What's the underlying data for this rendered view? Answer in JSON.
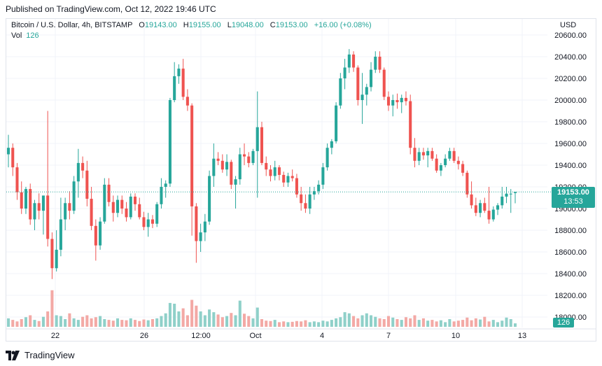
{
  "published": "Published on TradingView.com, Oct 12, 2022 19:46 UTC",
  "legend": {
    "symbol": "Bitcoin / U.S. Dollar, 4h, BITSTAMP",
    "o_label": "O",
    "o": "19143.00",
    "h_label": "H",
    "h": "19155.00",
    "l_label": "L",
    "l": "19048.00",
    "c_label": "C",
    "c": "19153.00",
    "change": "+16.00 (+0.08%)"
  },
  "vol_legend": {
    "label": "Vol",
    "value": "126"
  },
  "currency": "USD",
  "last_price": {
    "price": "19153.00",
    "countdown": "13:53"
  },
  "vol_badge": "126",
  "brand": "TradingView",
  "colors": {
    "up": "#26a69a",
    "down": "#ef5350",
    "up_vol": "#8fd0c9",
    "down_vol": "#f3a9a5",
    "grid": "#f0f3fa"
  },
  "chart_data": {
    "type": "candlestick",
    "y_axis": {
      "ticks": [
        "20600.00",
        "20400.00",
        "20200.00",
        "20000.00",
        "19800.00",
        "19600.00",
        "19400.00",
        "19200.00",
        "19000.00",
        "18800.00",
        "18600.00",
        "18400.00",
        "18200.00",
        "18000.00"
      ],
      "ylim": [
        18000,
        20650
      ]
    },
    "x_axis": {
      "ticks": [
        "22",
        "26",
        "12:00",
        "Oct",
        "4",
        "7",
        "10",
        "13"
      ]
    },
    "candles": [
      {
        "o": 19500,
        "h": 19680,
        "l": 19380,
        "c": 19560
      },
      {
        "o": 19560,
        "h": 19600,
        "l": 19300,
        "c": 19380
      },
      {
        "o": 19380,
        "h": 19420,
        "l": 19080,
        "c": 19150
      },
      {
        "o": 19150,
        "h": 19250,
        "l": 18950,
        "c": 19000
      },
      {
        "o": 19000,
        "h": 19200,
        "l": 18950,
        "c": 19180
      },
      {
        "o": 19180,
        "h": 19230,
        "l": 18850,
        "c": 18900
      },
      {
        "o": 18900,
        "h": 19080,
        "l": 18800,
        "c": 19050
      },
      {
        "o": 19050,
        "h": 19140,
        "l": 18900,
        "c": 18980
      },
      {
        "o": 18980,
        "h": 19100,
        "l": 18760,
        "c": 19120
      },
      {
        "o": 19120,
        "h": 19900,
        "l": 18650,
        "c": 18720
      },
      {
        "o": 18720,
        "h": 18780,
        "l": 18350,
        "c": 18450
      },
      {
        "o": 18450,
        "h": 18800,
        "l": 18420,
        "c": 18620
      },
      {
        "o": 18620,
        "h": 19100,
        "l": 18560,
        "c": 18900
      },
      {
        "o": 18900,
        "h": 19100,
        "l": 18800,
        "c": 19050
      },
      {
        "o": 19050,
        "h": 19160,
        "l": 18900,
        "c": 18980
      },
      {
        "o": 18980,
        "h": 19300,
        "l": 18950,
        "c": 19250
      },
      {
        "o": 19250,
        "h": 19550,
        "l": 19100,
        "c": 19420
      },
      {
        "o": 19420,
        "h": 19480,
        "l": 19280,
        "c": 19350
      },
      {
        "o": 19350,
        "h": 19440,
        "l": 19020,
        "c": 19090
      },
      {
        "o": 19090,
        "h": 19200,
        "l": 18800,
        "c": 18840
      },
      {
        "o": 18840,
        "h": 18900,
        "l": 18520,
        "c": 18660
      },
      {
        "o": 18660,
        "h": 18920,
        "l": 18620,
        "c": 18880
      },
      {
        "o": 18880,
        "h": 19280,
        "l": 18860,
        "c": 19220
      },
      {
        "o": 19220,
        "h": 19280,
        "l": 19020,
        "c": 19060
      },
      {
        "o": 19060,
        "h": 19120,
        "l": 18880,
        "c": 18960
      },
      {
        "o": 18960,
        "h": 19120,
        "l": 18920,
        "c": 19080
      },
      {
        "o": 19080,
        "h": 19120,
        "l": 18950,
        "c": 19000
      },
      {
        "o": 19000,
        "h": 19060,
        "l": 18880,
        "c": 18920
      },
      {
        "o": 18920,
        "h": 19140,
        "l": 18900,
        "c": 19110
      },
      {
        "o": 19110,
        "h": 19140,
        "l": 18980,
        "c": 19040
      },
      {
        "o": 19040,
        "h": 19100,
        "l": 18900,
        "c": 18920
      },
      {
        "o": 18920,
        "h": 18970,
        "l": 18800,
        "c": 18830
      },
      {
        "o": 18830,
        "h": 18960,
        "l": 18740,
        "c": 18900
      },
      {
        "o": 18900,
        "h": 18940,
        "l": 18820,
        "c": 18860
      },
      {
        "o": 18860,
        "h": 19060,
        "l": 18830,
        "c": 19040
      },
      {
        "o": 19040,
        "h": 19280,
        "l": 19000,
        "c": 19200
      },
      {
        "o": 19200,
        "h": 19260,
        "l": 19100,
        "c": 19230
      },
      {
        "o": 19230,
        "h": 20020,
        "l": 19200,
        "c": 20000
      },
      {
        "o": 20000,
        "h": 20350,
        "l": 19980,
        "c": 20220
      },
      {
        "o": 20220,
        "h": 20330,
        "l": 20150,
        "c": 20290
      },
      {
        "o": 20290,
        "h": 20380,
        "l": 20000,
        "c": 20030
      },
      {
        "o": 20030,
        "h": 20100,
        "l": 19900,
        "c": 19950
      },
      {
        "o": 19950,
        "h": 19970,
        "l": 18750,
        "c": 19020
      },
      {
        "o": 19020,
        "h": 19050,
        "l": 18500,
        "c": 18700
      },
      {
        "o": 18700,
        "h": 18860,
        "l": 18600,
        "c": 18780
      },
      {
        "o": 18780,
        "h": 18950,
        "l": 18700,
        "c": 18880
      },
      {
        "o": 18880,
        "h": 19350,
        "l": 18850,
        "c": 19300
      },
      {
        "o": 19300,
        "h": 19600,
        "l": 19200,
        "c": 19460
      },
      {
        "o": 19460,
        "h": 19520,
        "l": 19400,
        "c": 19440
      },
      {
        "o": 19440,
        "h": 19500,
        "l": 19330,
        "c": 19360
      },
      {
        "o": 19360,
        "h": 19500,
        "l": 19300,
        "c": 19430
      },
      {
        "o": 19430,
        "h": 19450,
        "l": 19180,
        "c": 19220
      },
      {
        "o": 19220,
        "h": 19300,
        "l": 19000,
        "c": 19270
      },
      {
        "o": 19270,
        "h": 19560,
        "l": 19220,
        "c": 19500
      },
      {
        "o": 19500,
        "h": 19600,
        "l": 19400,
        "c": 19480
      },
      {
        "o": 19480,
        "h": 19520,
        "l": 19380,
        "c": 19420
      },
      {
        "o": 19420,
        "h": 19550,
        "l": 19400,
        "c": 19530
      },
      {
        "o": 19530,
        "h": 20080,
        "l": 19100,
        "c": 19750
      },
      {
        "o": 19750,
        "h": 19800,
        "l": 19400,
        "c": 19420
      },
      {
        "o": 19420,
        "h": 19480,
        "l": 19300,
        "c": 19360
      },
      {
        "o": 19360,
        "h": 19400,
        "l": 19250,
        "c": 19300
      },
      {
        "o": 19300,
        "h": 19440,
        "l": 19260,
        "c": 19380
      },
      {
        "o": 19380,
        "h": 19400,
        "l": 19260,
        "c": 19310
      },
      {
        "o": 19310,
        "h": 19340,
        "l": 19200,
        "c": 19240
      },
      {
        "o": 19240,
        "h": 19330,
        "l": 19200,
        "c": 19300
      },
      {
        "o": 19300,
        "h": 19360,
        "l": 19250,
        "c": 19280
      },
      {
        "o": 19280,
        "h": 19320,
        "l": 19100,
        "c": 19130
      },
      {
        "o": 19130,
        "h": 19200,
        "l": 18980,
        "c": 19050
      },
      {
        "o": 19050,
        "h": 19130,
        "l": 18960,
        "c": 19000
      },
      {
        "o": 19000,
        "h": 19200,
        "l": 18950,
        "c": 19130
      },
      {
        "o": 19130,
        "h": 19200,
        "l": 19080,
        "c": 19160
      },
      {
        "o": 19160,
        "h": 19260,
        "l": 19130,
        "c": 19220
      },
      {
        "o": 19220,
        "h": 19420,
        "l": 19180,
        "c": 19380
      },
      {
        "o": 19380,
        "h": 19600,
        "l": 19350,
        "c": 19560
      },
      {
        "o": 19560,
        "h": 19640,
        "l": 19500,
        "c": 19620
      },
      {
        "o": 19620,
        "h": 19980,
        "l": 19600,
        "c": 19950
      },
      {
        "o": 19950,
        "h": 20250,
        "l": 19920,
        "c": 20200
      },
      {
        "o": 20200,
        "h": 20380,
        "l": 20100,
        "c": 20300
      },
      {
        "o": 20300,
        "h": 20470,
        "l": 20250,
        "c": 20420
      },
      {
        "o": 20420,
        "h": 20450,
        "l": 20260,
        "c": 20300
      },
      {
        "o": 20300,
        "h": 20320,
        "l": 19950,
        "c": 20000
      },
      {
        "o": 20000,
        "h": 20250,
        "l": 19780,
        "c": 20050
      },
      {
        "o": 20050,
        "h": 20150,
        "l": 19950,
        "c": 20120
      },
      {
        "o": 20120,
        "h": 20350,
        "l": 20080,
        "c": 20280
      },
      {
        "o": 20280,
        "h": 20450,
        "l": 20250,
        "c": 20400
      },
      {
        "o": 20400,
        "h": 20450,
        "l": 20250,
        "c": 20280
      },
      {
        "o": 20280,
        "h": 20300,
        "l": 20000,
        "c": 20030
      },
      {
        "o": 20030,
        "h": 20080,
        "l": 19900,
        "c": 19950
      },
      {
        "o": 19950,
        "h": 20050,
        "l": 19850,
        "c": 20000
      },
      {
        "o": 20000,
        "h": 20060,
        "l": 19920,
        "c": 19980
      },
      {
        "o": 19980,
        "h": 20050,
        "l": 19880,
        "c": 20020
      },
      {
        "o": 20020,
        "h": 20080,
        "l": 19950,
        "c": 19990
      },
      {
        "o": 19990,
        "h": 20050,
        "l": 19500,
        "c": 19560
      },
      {
        "o": 19560,
        "h": 19650,
        "l": 19380,
        "c": 19440
      },
      {
        "o": 19440,
        "h": 19560,
        "l": 19400,
        "c": 19520
      },
      {
        "o": 19520,
        "h": 19560,
        "l": 19450,
        "c": 19490
      },
      {
        "o": 19490,
        "h": 19560,
        "l": 19380,
        "c": 19530
      },
      {
        "o": 19530,
        "h": 19560,
        "l": 19440,
        "c": 19460
      },
      {
        "o": 19460,
        "h": 19500,
        "l": 19330,
        "c": 19350
      },
      {
        "o": 19350,
        "h": 19420,
        "l": 19300,
        "c": 19400
      },
      {
        "o": 19400,
        "h": 19500,
        "l": 19380,
        "c": 19460
      },
      {
        "o": 19460,
        "h": 19560,
        "l": 19440,
        "c": 19530
      },
      {
        "o": 19530,
        "h": 19560,
        "l": 19420,
        "c": 19440
      },
      {
        "o": 19440,
        "h": 19480,
        "l": 19360,
        "c": 19410
      },
      {
        "o": 19410,
        "h": 19440,
        "l": 19300,
        "c": 19330
      },
      {
        "o": 19330,
        "h": 19350,
        "l": 19100,
        "c": 19130
      },
      {
        "o": 19130,
        "h": 19250,
        "l": 19000,
        "c": 19030
      },
      {
        "o": 19030,
        "h": 19100,
        "l": 18930,
        "c": 18960
      },
      {
        "o": 18960,
        "h": 19080,
        "l": 18920,
        "c": 19050
      },
      {
        "o": 19050,
        "h": 19100,
        "l": 18960,
        "c": 18980
      },
      {
        "o": 18980,
        "h": 19200,
        "l": 18860,
        "c": 18900
      },
      {
        "o": 18900,
        "h": 19020,
        "l": 18880,
        "c": 18990
      },
      {
        "o": 18990,
        "h": 19050,
        "l": 18940,
        "c": 19030
      },
      {
        "o": 19030,
        "h": 19200,
        "l": 19000,
        "c": 19110
      },
      {
        "o": 19110,
        "h": 19200,
        "l": 19050,
        "c": 19137
      },
      {
        "o": 19137,
        "h": 19180,
        "l": 18960,
        "c": 19137
      },
      {
        "o": 19143,
        "h": 19155,
        "l": 19048,
        "c": 19153
      }
    ],
    "volume": [
      22,
      18,
      14,
      20,
      25,
      30,
      18,
      15,
      26,
      40,
      95,
      30,
      28,
      20,
      35,
      22,
      18,
      26,
      30,
      22,
      25,
      28,
      20,
      18,
      16,
      22,
      18,
      17,
      22,
      18,
      15,
      19,
      17,
      20,
      22,
      28,
      35,
      62,
      60,
      40,
      48,
      30,
      70,
      55,
      40,
      30,
      45,
      38,
      32,
      25,
      28,
      36,
      30,
      68,
      34,
      28,
      22,
      50,
      20,
      16,
      15,
      18,
      12,
      14,
      12,
      13,
      15,
      14,
      17,
      12,
      14,
      12,
      16,
      14,
      18,
      22,
      25,
      38,
      35,
      28,
      22,
      30,
      35,
      30,
      26,
      22,
      20,
      28,
      24,
      20,
      18,
      25,
      22,
      30,
      18,
      22,
      16,
      18,
      14,
      17,
      12,
      20,
      14,
      16,
      18,
      24,
      17,
      22,
      19,
      26,
      14,
      18,
      12,
      16,
      24,
      20,
      9
    ]
  }
}
